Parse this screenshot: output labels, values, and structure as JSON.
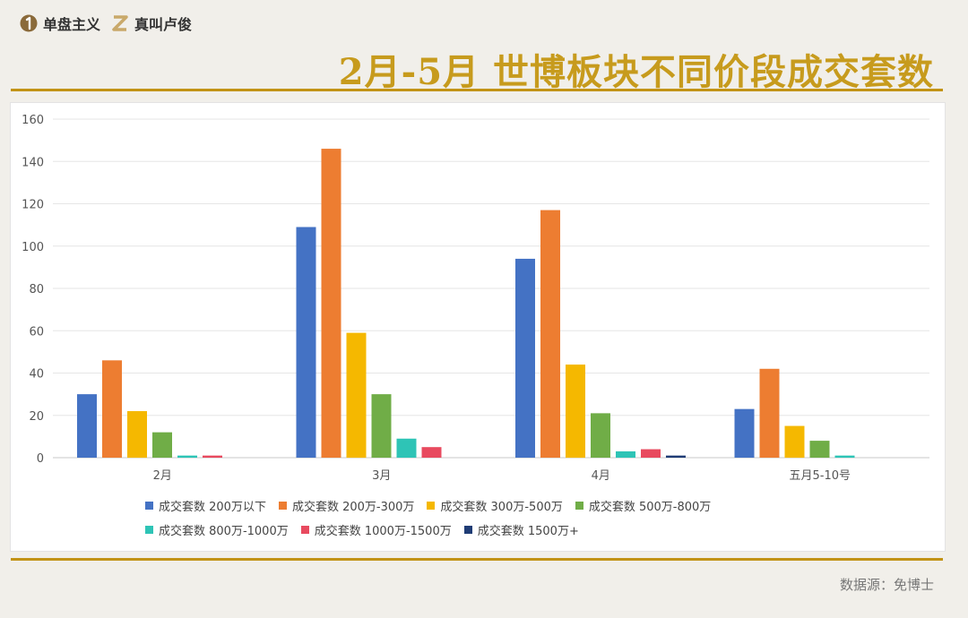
{
  "brand": {
    "item1_label": "单盘主义",
    "item1_icon": "number-1-icon",
    "item2_label": "真叫卢俊",
    "item2_icon": "letter-z-icon"
  },
  "title": "2月-5月 世博板块不同价段成交套数",
  "source": "数据源：免博士",
  "colors": {
    "accent": "#c79b1d",
    "rule": "#c29316",
    "background": "#f1efea"
  },
  "chart_data": {
    "type": "bar",
    "title": "",
    "xlabel": "",
    "ylabel": "",
    "ylim": [
      0,
      160
    ],
    "yticks": [
      0,
      20,
      40,
      60,
      80,
      100,
      120,
      140,
      160
    ],
    "grid": true,
    "legend_position": "bottom",
    "categories": [
      "2月",
      "3月",
      "4月",
      "五月5-10号"
    ],
    "series": [
      {
        "name": "成交套数 200万以下",
        "color": "#4472c4",
        "values": [
          30,
          109,
          94,
          23
        ]
      },
      {
        "name": "成交套数 200万-300万",
        "color": "#ed7d31",
        "values": [
          46,
          146,
          117,
          42
        ]
      },
      {
        "name": "成交套数 300万-500万",
        "color": "#f5b800",
        "values": [
          22,
          59,
          44,
          15
        ]
      },
      {
        "name": "成交套数 500万-800万",
        "color": "#70ad47",
        "values": [
          12,
          30,
          21,
          8
        ]
      },
      {
        "name": "成交套数 800万-1000万",
        "color": "#2ec4b6",
        "values": [
          1,
          9,
          3,
          1
        ]
      },
      {
        "name": "成交套数 1000万-1500万",
        "color": "#e84a5f",
        "values": [
          1,
          5,
          4,
          0
        ]
      },
      {
        "name": "成交套数 1500万+",
        "color": "#1f3c75",
        "values": [
          0,
          0,
          1,
          0
        ]
      }
    ]
  }
}
